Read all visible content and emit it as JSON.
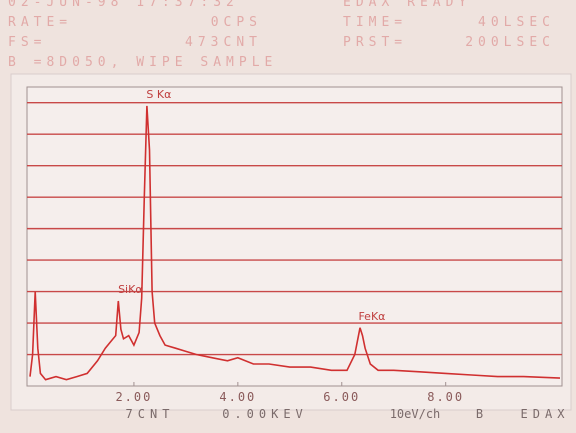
{
  "header": {
    "line1": [
      "02-JUN-98  17:37:32",
      "EDAX  READY"
    ],
    "rows": [
      [
        "RATE=",
        "0CPS",
        "TIME=",
        "40LSEC"
      ],
      [
        "FS=",
        "473CNT",
        "PRST=",
        "200LSEC"
      ]
    ],
    "sample": "B =8D050, WIPE SAMPLE"
  },
  "chart_data": {
    "type": "line",
    "color": "#d03030",
    "grid_color": "#c84848",
    "x": [
      0,
      0.05,
      0.1,
      0.15,
      0.2,
      0.3,
      0.5,
      0.7,
      0.9,
      1.1,
      1.3,
      1.45,
      1.55,
      1.65,
      1.7,
      1.75,
      1.8,
      1.9,
      2.0,
      2.1,
      2.15,
      2.2,
      2.25,
      2.3,
      2.35,
      2.4,
      2.5,
      2.6,
      2.8,
      3.0,
      3.2,
      3.5,
      3.8,
      4.0,
      4.3,
      4.6,
      5.0,
      5.4,
      5.8,
      6.1,
      6.25,
      6.35,
      6.4,
      6.45,
      6.55,
      6.7,
      7.0,
      7.5,
      8.0,
      8.5,
      9.0,
      9.5,
      10.2
    ],
    "values": [
      0.3,
      1.0,
      3.0,
      1.2,
      0.4,
      0.2,
      0.3,
      0.2,
      0.3,
      0.4,
      0.8,
      1.2,
      1.4,
      1.6,
      2.7,
      1.8,
      1.5,
      1.6,
      1.3,
      1.7,
      2.8,
      6.0,
      8.9,
      7.5,
      3.0,
      2.0,
      1.6,
      1.3,
      1.2,
      1.1,
      1.0,
      0.9,
      0.8,
      0.9,
      0.7,
      0.7,
      0.6,
      0.6,
      0.5,
      0.5,
      1.0,
      1.85,
      1.6,
      1.2,
      0.7,
      0.5,
      0.5,
      0.45,
      0.4,
      0.35,
      0.3,
      0.3,
      0.25
    ],
    "xlim": [
      0,
      10.2
    ],
    "ylim": [
      0,
      9.5
    ],
    "xticks": [
      {
        "value": 2,
        "label": "2.00"
      },
      {
        "value": 4,
        "label": "4.00"
      },
      {
        "value": 6,
        "label": "6.00"
      },
      {
        "value": 8,
        "label": "8.00"
      }
    ],
    "ygrid": [
      1,
      2,
      3,
      4,
      5,
      6,
      7,
      8,
      9
    ],
    "annotations": [
      {
        "text": "S Kα",
        "x": 2.25
      },
      {
        "text": "SiKα",
        "x": 1.7
      },
      {
        "text": "FeKα",
        "x": 6.35
      }
    ],
    "footer": [
      "7CNT",
      "0.00KEV",
      "10eV/ch",
      "B",
      "EDAX"
    ]
  }
}
